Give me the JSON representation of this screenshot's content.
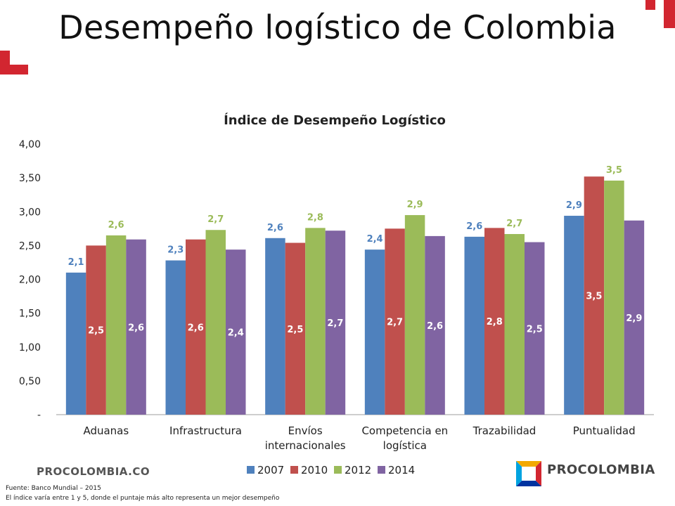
{
  "slide": {
    "title": "Desempeño logístico de Colombia",
    "brand_left": "PROCOLOMBIA.CO",
    "brand_right": "PROCOLOMBIA",
    "footnotes": [
      "Fuente: Banco Mundial – 2015",
      "El índice varía entre 1 y 5, donde el puntaje más alto representa un mejor desempeño"
    ],
    "accent_color": "#d22630",
    "logo_colors": [
      "#f2a900",
      "#d22630",
      "#0033a0",
      "#00a3e0"
    ]
  },
  "chart_data": {
    "type": "bar",
    "title": "Índice de Desempeño Logístico",
    "xlabel": "",
    "ylabel": "",
    "categories": [
      [
        "Aduanas"
      ],
      [
        "Infrastructura"
      ],
      [
        "Envíos",
        "internacionales"
      ],
      [
        "Competencia en",
        "logística"
      ],
      [
        "Trazabilidad"
      ],
      [
        "Puntualidad"
      ]
    ],
    "series": [
      {
        "name": "2007",
        "color": "#4f81bd",
        "values": [
          2.1,
          2.28,
          2.61,
          2.44,
          2.63,
          2.94
        ],
        "labels": [
          "2,1",
          "2,3",
          "2,6",
          "2,4",
          "2,6",
          "2,9"
        ],
        "label_pos": "above"
      },
      {
        "name": "2010",
        "color": "#c0504d",
        "values": [
          2.5,
          2.59,
          2.54,
          2.75,
          2.76,
          3.52
        ],
        "labels": [
          "2,5",
          "2,6",
          "2,5",
          "2,7",
          "2,8",
          "3,5"
        ],
        "label_pos": "inside"
      },
      {
        "name": "2012",
        "color": "#9bbb59",
        "values": [
          2.65,
          2.73,
          2.76,
          2.95,
          2.67,
          3.46
        ],
        "labels": [
          "2,6",
          "2,7",
          "2,8",
          "2,9",
          "2,7",
          "3,5"
        ],
        "label_pos": "above"
      },
      {
        "name": "2014",
        "color": "#8064a2",
        "values": [
          2.59,
          2.44,
          2.72,
          2.64,
          2.55,
          2.87
        ],
        "labels": [
          "2,6",
          "2,4",
          "2,7",
          "2,6",
          "2,5",
          "2,9"
        ],
        "label_pos": "inside"
      }
    ],
    "ylim": [
      0,
      4
    ],
    "yticks": [
      "-",
      "0,50",
      "1,00",
      "1,50",
      "2,00",
      "2,50",
      "3,00",
      "3,50",
      "4,00"
    ],
    "grid": false,
    "legend_position": "bottom"
  }
}
